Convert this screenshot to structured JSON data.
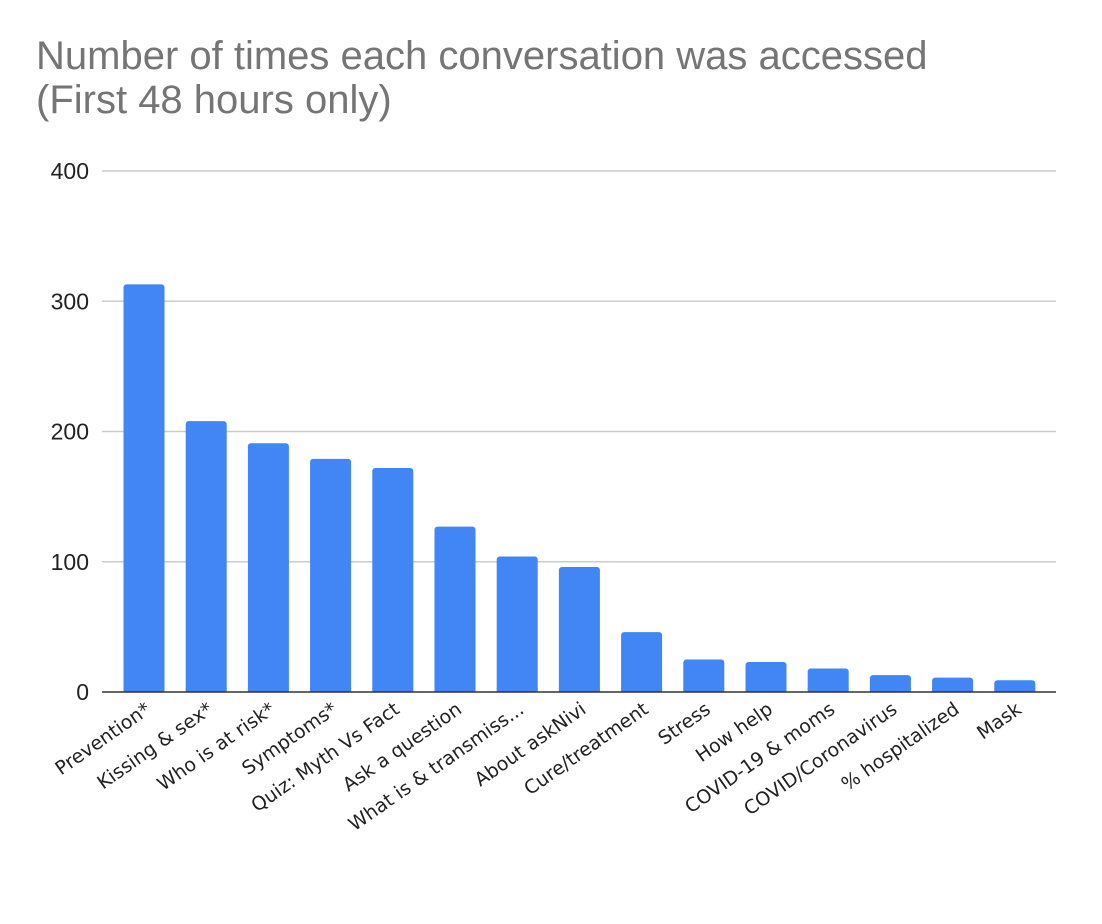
{
  "chart_data": {
    "type": "bar",
    "title": "Number of times each conversation was accessed (First 48 hours only)",
    "xlabel": "",
    "ylabel": "",
    "ylim": [
      0,
      400
    ],
    "yticks": [
      0,
      100,
      200,
      300,
      400
    ],
    "grid": true,
    "legend": "none",
    "bar_color": "#4285f4",
    "categories": [
      "Prevention*",
      "Kissing & sex*",
      "Who is at risk*",
      "Symptoms*",
      "Quiz: Myth Vs Fact",
      "Ask a question",
      "What is & transmiss...",
      "About askNivi",
      "Cure/treatment",
      "Stress",
      "How help",
      "COVID-19 & moms",
      "COVID/Coronavirus",
      "% hospitalized",
      "Mask"
    ],
    "values": [
      313,
      208,
      191,
      179,
      172,
      127,
      104,
      96,
      46,
      25,
      23,
      18,
      13,
      11,
      9
    ]
  }
}
